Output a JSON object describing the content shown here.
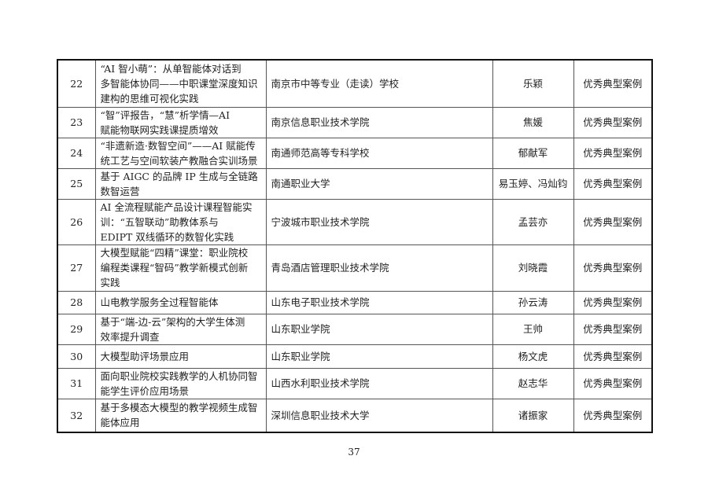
{
  "rows": [
    {
      "no": "22",
      "title": "“AI 智小萌”：从单智能体对话到\n多智能体协同——中职课堂深度知识\n建构的思维可视化实践",
      "school": "南京市中等专业（走读）学校",
      "person": "乐颖",
      "award": "优秀典型案例"
    },
    {
      "no": "23",
      "title": "“智”评报告，“慧”析学情—AI\n赋能物联网实践课提质增效",
      "school": "南京信息职业技术学院",
      "person": "焦媛",
      "award": "优秀典型案例"
    },
    {
      "no": "24",
      "title": "“非遗新造·数智空间”——AI 赋能传\n统工艺与空间软装产教融合实训场景",
      "school": "南通师范高等专科学校",
      "person": "郁献军",
      "award": "优秀典型案例"
    },
    {
      "no": "25",
      "title": "基于 AIGC 的品牌 IP 生成与全链路\n数智运营",
      "school": "南通职业大学",
      "person": "易玉婷、冯灿钧",
      "award": "优秀典型案例"
    },
    {
      "no": "26",
      "title": "AI 全流程赋能产品设计课程智能实\n训：“五智联动”助教体系与\nEDIPT 双线循环的数智化实践",
      "school": "宁波城市职业技术学院",
      "person": "孟芸亦",
      "award": "优秀典型案例"
    },
    {
      "no": "27",
      "title": "大模型赋能“四精”课堂：职业院校\n编程类课程“智码”教学新模式创新\n实践",
      "school": "青岛酒店管理职业技术学院",
      "person": "刘晓霞",
      "award": "优秀典型案例"
    },
    {
      "no": "28",
      "title": "山电教学服务全过程智能体",
      "school": "山东电子职业技术学院",
      "person": "孙云涛",
      "award": "优秀典型案例"
    },
    {
      "no": "29",
      "title": "基于“端-边-云”架构的大学生体测\n效率提升调查",
      "school": "山东职业学院",
      "person": "王帅",
      "award": "优秀典型案例"
    },
    {
      "no": "30",
      "title": "大模型助评场景应用",
      "school": "山东职业学院",
      "person": "杨文虎",
      "award": "优秀典型案例"
    },
    {
      "no": "31",
      "title": "面向职业院校实践教学的人机协同智\n能学生评价应用场景",
      "school": "山西水利职业技术学院",
      "person": "赵志华",
      "award": "优秀典型案例"
    },
    {
      "no": "32",
      "title": "基于多模态大模型的教学视频生成智\n能体应用",
      "school": "深圳信息职业技术大学",
      "person": "诸振家",
      "award": "优秀典型案例"
    }
  ],
  "page_number": "37"
}
